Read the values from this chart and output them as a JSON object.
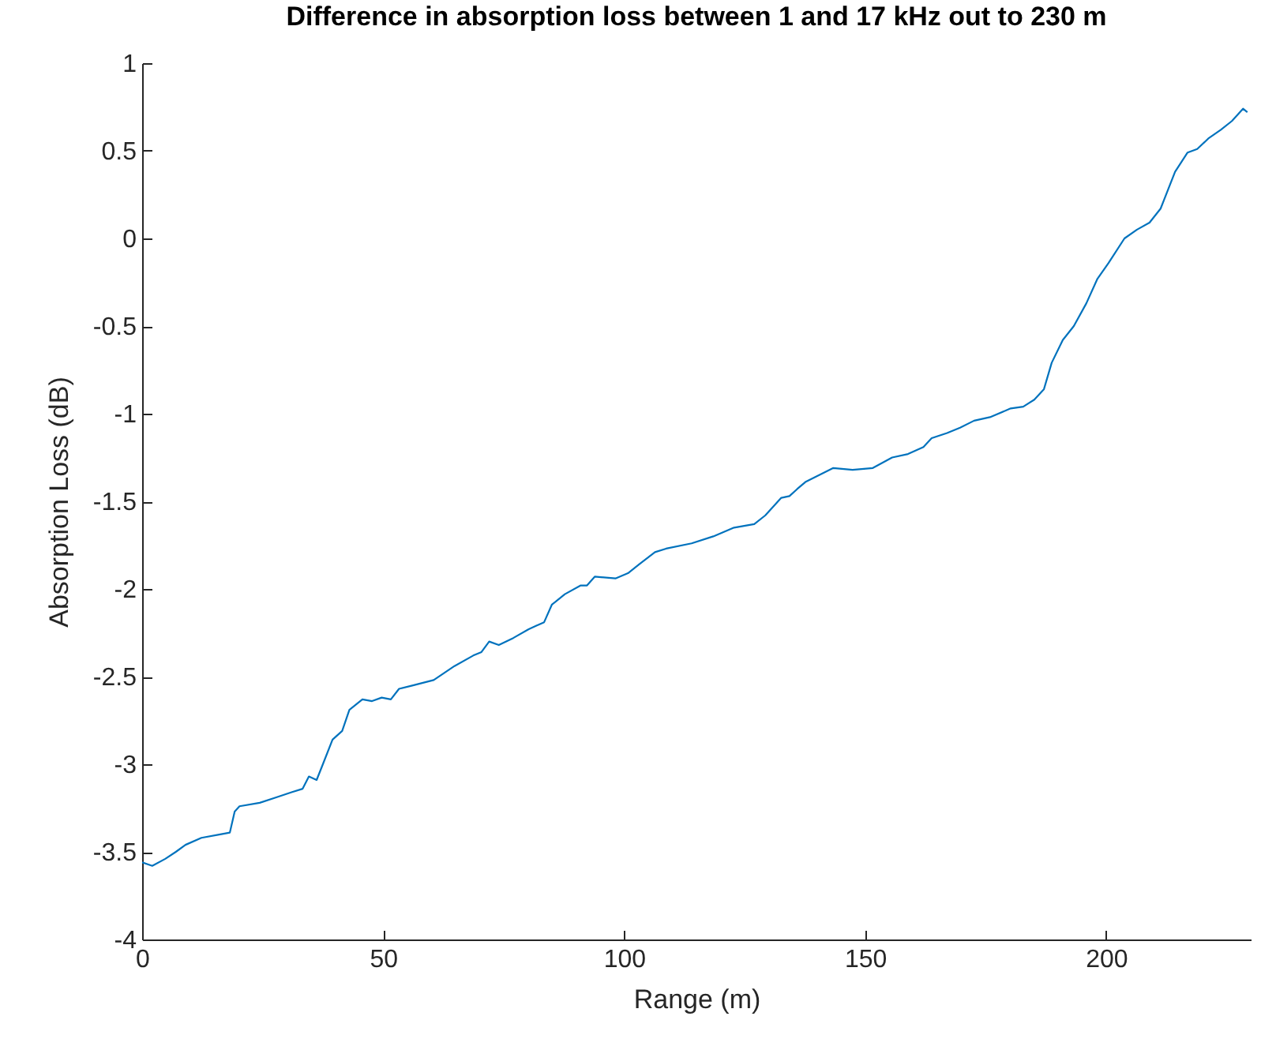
{
  "chart_data": {
    "type": "line",
    "title": "Difference in absorption loss between 1 and 17 kHz out to 230 m",
    "xlabel": "Range (m)",
    "ylabel": "Absorption Loss (dB)",
    "x": [
      0,
      2.1,
      4.8,
      7,
      9,
      12.3,
      16.2,
      18.2,
      19.2,
      20.2,
      24.4,
      27.7,
      31,
      33.3,
      34.6,
      36.2,
      37.5,
      39.5,
      41.5,
      43,
      45.7,
      47.7,
      49.7,
      51.6,
      53.3,
      56.2,
      60.5,
      64.8,
      68.7,
      70.4,
      72,
      74,
      77,
      80.2,
      81.8,
      83.4,
      85,
      87.7,
      91,
      92.3,
      93.9,
      98.2,
      100.8,
      103.1,
      106.4,
      108.7,
      114,
      118.5,
      122.8,
      127,
      129.3,
      132.6,
      134.3,
      135.9,
      137.6,
      143.4,
      147.4,
      151.6,
      155.6,
      158.9,
      162.1,
      163.8,
      167,
      169.7,
      172.6,
      175.9,
      180.2,
      182.8,
      185.1,
      187.1,
      188.7,
      191,
      193.3,
      195.9,
      198.2,
      200.5,
      203.8,
      206.4,
      209,
      211.3,
      214.3,
      216.9,
      218.9,
      221.2,
      223.8,
      226.1,
      228.4,
      229.3
    ],
    "series": [
      {
        "color": "#0072bd",
        "values": [
          -3.56,
          -3.58,
          -3.54,
          -3.5,
          -3.46,
          -3.42,
          -3.4,
          -3.39,
          -3.27,
          -3.24,
          -3.22,
          -3.19,
          -3.16,
          -3.14,
          -3.07,
          -3.09,
          -3.0,
          -2.86,
          -2.81,
          -2.69,
          -2.63,
          -2.64,
          -2.62,
          -2.63,
          -2.57,
          -2.55,
          -2.52,
          -2.44,
          -2.38,
          -2.36,
          -2.3,
          -2.32,
          -2.28,
          -2.23,
          -2.21,
          -2.19,
          -2.09,
          -2.03,
          -1.98,
          -1.98,
          -1.93,
          -1.94,
          -1.91,
          -1.86,
          -1.79,
          -1.77,
          -1.74,
          -1.7,
          -1.65,
          -1.63,
          -1.58,
          -1.48,
          -1.47,
          -1.43,
          -1.39,
          -1.31,
          -1.32,
          -1.31,
          -1.25,
          -1.23,
          -1.19,
          -1.14,
          -1.11,
          -1.08,
          -1.04,
          -1.02,
          -0.97,
          -0.96,
          -0.92,
          -0.86,
          -0.71,
          -0.58,
          -0.5,
          -0.37,
          -0.23,
          -0.14,
          0.0,
          0.05,
          0.09,
          0.17,
          0.38,
          0.49,
          0.51,
          0.57,
          0.62,
          0.67,
          0.74,
          0.72
        ]
      }
    ],
    "xlim": [
      0,
      230
    ],
    "xticks": [
      0,
      50,
      100,
      150,
      200
    ],
    "ylim": [
      -4,
      1
    ],
    "yticks": [
      -4,
      -3.5,
      -3,
      -2.5,
      -2,
      -1.5,
      -1,
      -0.5,
      0,
      0.5,
      1
    ],
    "grid": false
  }
}
